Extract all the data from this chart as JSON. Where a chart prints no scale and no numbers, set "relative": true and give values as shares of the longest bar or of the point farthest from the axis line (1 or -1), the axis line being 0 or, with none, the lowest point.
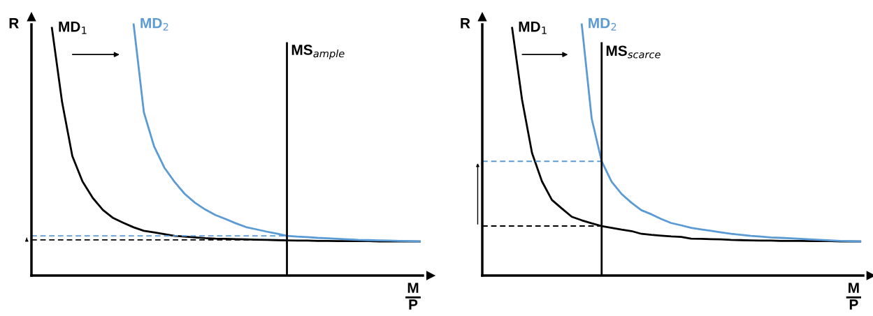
{
  "chart_data": [
    {
      "type": "line",
      "relative": true,
      "ylabel": "R",
      "xlabel": "M\nP",
      "annotations": [
        "MS$_{ample}$"
      ],
      "categories": [
        null,
        null,
        null,
        null,
        null,
        null,
        null,
        null,
        null,
        null,
        null,
        null,
        null,
        null,
        null,
        null,
        null,
        null,
        null,
        null,
        null,
        null,
        null,
        null,
        null,
        null,
        null,
        null,
        null,
        null,
        null,
        null,
        null,
        null,
        null,
        null,
        null,
        null,
        null
      ],
      "series": [
        {
          "name": "MD$_{1}$",
          "color": "#000000",
          "line_style": "solid",
          "values": [
            null,
            null,
            0.986,
            0.69,
            0.476,
            0.374,
            0.309,
            0.261,
            0.229,
            0.21,
            0.192,
            0.178,
            0.172,
            0.165,
            0.158,
            0.155,
            0.152,
            0.149,
            0.147,
            0.146,
            0.145,
            0.144,
            0.143,
            0.142,
            0.141,
            0.14,
            0.139,
            0.139,
            0.138,
            0.138,
            0.137,
            0.137,
            0.137,
            0.137,
            0.136,
            0.136,
            0.136,
            0.136,
            0.136
          ]
        },
        {
          "name": "MD$_{2}$",
          "color": "#5b9bd5",
          "line_style": "solid",
          "values": [
            null,
            null,
            null,
            null,
            null,
            null,
            null,
            null,
            null,
            null,
            1.0,
            0.65,
            0.514,
            0.43,
            0.373,
            0.325,
            0.29,
            0.263,
            0.241,
            0.225,
            0.208,
            0.193,
            0.184,
            0.175,
            0.167,
            0.158,
            0.155,
            0.153,
            0.15,
            0.148,
            0.146,
            0.144,
            0.142,
            0.141,
            0.14,
            0.139,
            0.138,
            0.137,
            0.136
          ]
        },
        {
          "color": "#000000",
          "line_style": "dashed",
          "values": [
            0.142,
            0.142,
            0.142,
            0.142,
            0.142,
            0.142,
            0.142,
            0.142,
            0.142,
            0.142,
            0.142,
            0.142,
            0.142,
            0.142,
            0.142,
            0.142,
            0.142,
            0.142,
            0.142,
            0.142,
            0.142,
            0.142,
            0.142,
            0.142,
            0.142,
            0.142,
            null,
            null,
            null,
            null,
            null,
            null,
            null,
            null,
            null,
            null,
            null,
            null,
            null
          ]
        },
        {
          "color": "#5b9bd5",
          "line_style": "dashed",
          "values": [
            0.158,
            0.158,
            0.158,
            0.158,
            0.158,
            0.158,
            0.158,
            0.158,
            0.158,
            0.158,
            0.158,
            0.158,
            0.158,
            0.158,
            0.158,
            0.158,
            0.158,
            0.158,
            0.158,
            0.158,
            0.158,
            0.158,
            0.158,
            0.158,
            0.158,
            0.158,
            null,
            null,
            null,
            null,
            null,
            null,
            null,
            null,
            null,
            null,
            null,
            null,
            null
          ]
        }
      ]
    },
    {
      "type": "line",
      "relative": true,
      "ylabel": "R",
      "xlabel": "M\nP",
      "annotations": [
        "MS$_{scarce}$"
      ],
      "categories": [
        null,
        null,
        null,
        null,
        null,
        null,
        null,
        null,
        null,
        null,
        null,
        null,
        null,
        null,
        null,
        null,
        null,
        null,
        null,
        null,
        null,
        null,
        null,
        null,
        null,
        null,
        null,
        null,
        null,
        null,
        null,
        null,
        null,
        null,
        null,
        null,
        null,
        null,
        null
      ],
      "series": [
        {
          "name": "MD$_{1}$",
          "color": "#000000",
          "line_style": "solid",
          "values": [
            null,
            null,
            null,
            0.986,
            0.7,
            0.488,
            0.375,
            0.301,
            0.267,
            0.234,
            0.22,
            0.208,
            0.197,
            0.19,
            0.183,
            0.177,
            0.166,
            0.162,
            0.159,
            0.156,
            0.154,
            0.147,
            0.146,
            0.145,
            0.144,
            0.142,
            0.141,
            0.14,
            0.139,
            0.139,
            0.138,
            0.138,
            0.138,
            0.137,
            0.137,
            0.137,
            0.136,
            0.136,
            0.136
          ]
        },
        {
          "name": "MD$_{2}$",
          "color": "#5b9bd5",
          "line_style": "solid",
          "values": [
            null,
            null,
            null,
            null,
            null,
            null,
            null,
            null,
            null,
            null,
            1.0,
            0.625,
            0.455,
            0.374,
            0.325,
            0.29,
            0.26,
            0.244,
            0.225,
            0.209,
            0.2,
            0.19,
            0.184,
            0.178,
            0.172,
            0.166,
            0.162,
            0.158,
            0.155,
            0.152,
            0.15,
            0.148,
            0.146,
            0.144,
            0.142,
            0.14,
            0.138,
            0.137,
            0.136
          ]
        },
        {
          "color": "#000000",
          "line_style": "dashed",
          "values": [
            0.197,
            0.197,
            0.197,
            0.197,
            0.197,
            0.197,
            0.197,
            0.197,
            0.197,
            0.197,
            0.197,
            0.197,
            0.197,
            null,
            null,
            null,
            null,
            null,
            null,
            null,
            null,
            null,
            null,
            null,
            null,
            null,
            null,
            null,
            null,
            null,
            null,
            null,
            null,
            null,
            null,
            null,
            null,
            null,
            null
          ]
        },
        {
          "color": "#5b9bd5",
          "line_style": "dashed",
          "values": [
            0.455,
            0.455,
            0.455,
            0.455,
            0.455,
            0.455,
            0.455,
            0.455,
            0.455,
            0.455,
            0.455,
            0.455,
            0.455,
            null,
            null,
            null,
            null,
            null,
            null,
            null,
            null,
            null,
            null,
            null,
            null,
            null,
            null,
            null,
            null,
            null,
            null,
            null,
            null,
            null,
            null,
            null,
            null,
            null,
            null
          ]
        }
      ]
    }
  ]
}
